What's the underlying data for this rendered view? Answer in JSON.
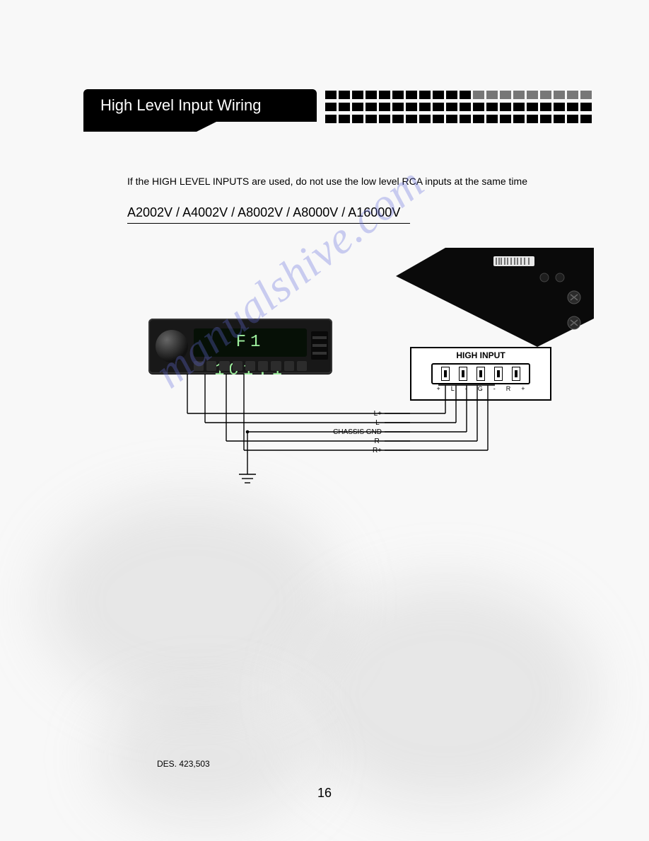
{
  "header": {
    "title": "High Level Input Wiring",
    "grid_rows": 3,
    "grid_cols": 20,
    "square_color": "#000000",
    "faded_top_row_from_col": 11
  },
  "intro_text": "If the HIGH LEVEL INPUTS are used, do not use the low level RCA inputs at the same time",
  "models_line": "A2002V / A4002V / A8002V / A8000V / A16000V",
  "head_unit": {
    "display_text": "F1 101.1",
    "display_text_color": "#9ef09e",
    "body_color": "#181818",
    "button_color": "#2c2c2c",
    "button_count": 9
  },
  "amp_panel": {
    "fill": "#0a0a0a",
    "barcode_bg": "#e8e8e8",
    "screw_color": "#3a3a3a"
  },
  "high_input": {
    "title": "HIGH INPUT",
    "pin_labels": [
      "+",
      "L",
      "-",
      "G",
      "-",
      "R",
      "+"
    ],
    "pin_count": 5,
    "box_border_color": "#000000"
  },
  "wire_labels": [
    "L+",
    "L-",
    "CHASSIS GND",
    "R-",
    "R+"
  ],
  "wiring": {
    "stroke": "#000000",
    "stroke_width": 1.4,
    "label_rule_x1": 484,
    "label_rule_x2": 520
  },
  "watermark": "manualshive.com",
  "footer": {
    "design_code": "DES. 423,503",
    "page_number": "16"
  }
}
